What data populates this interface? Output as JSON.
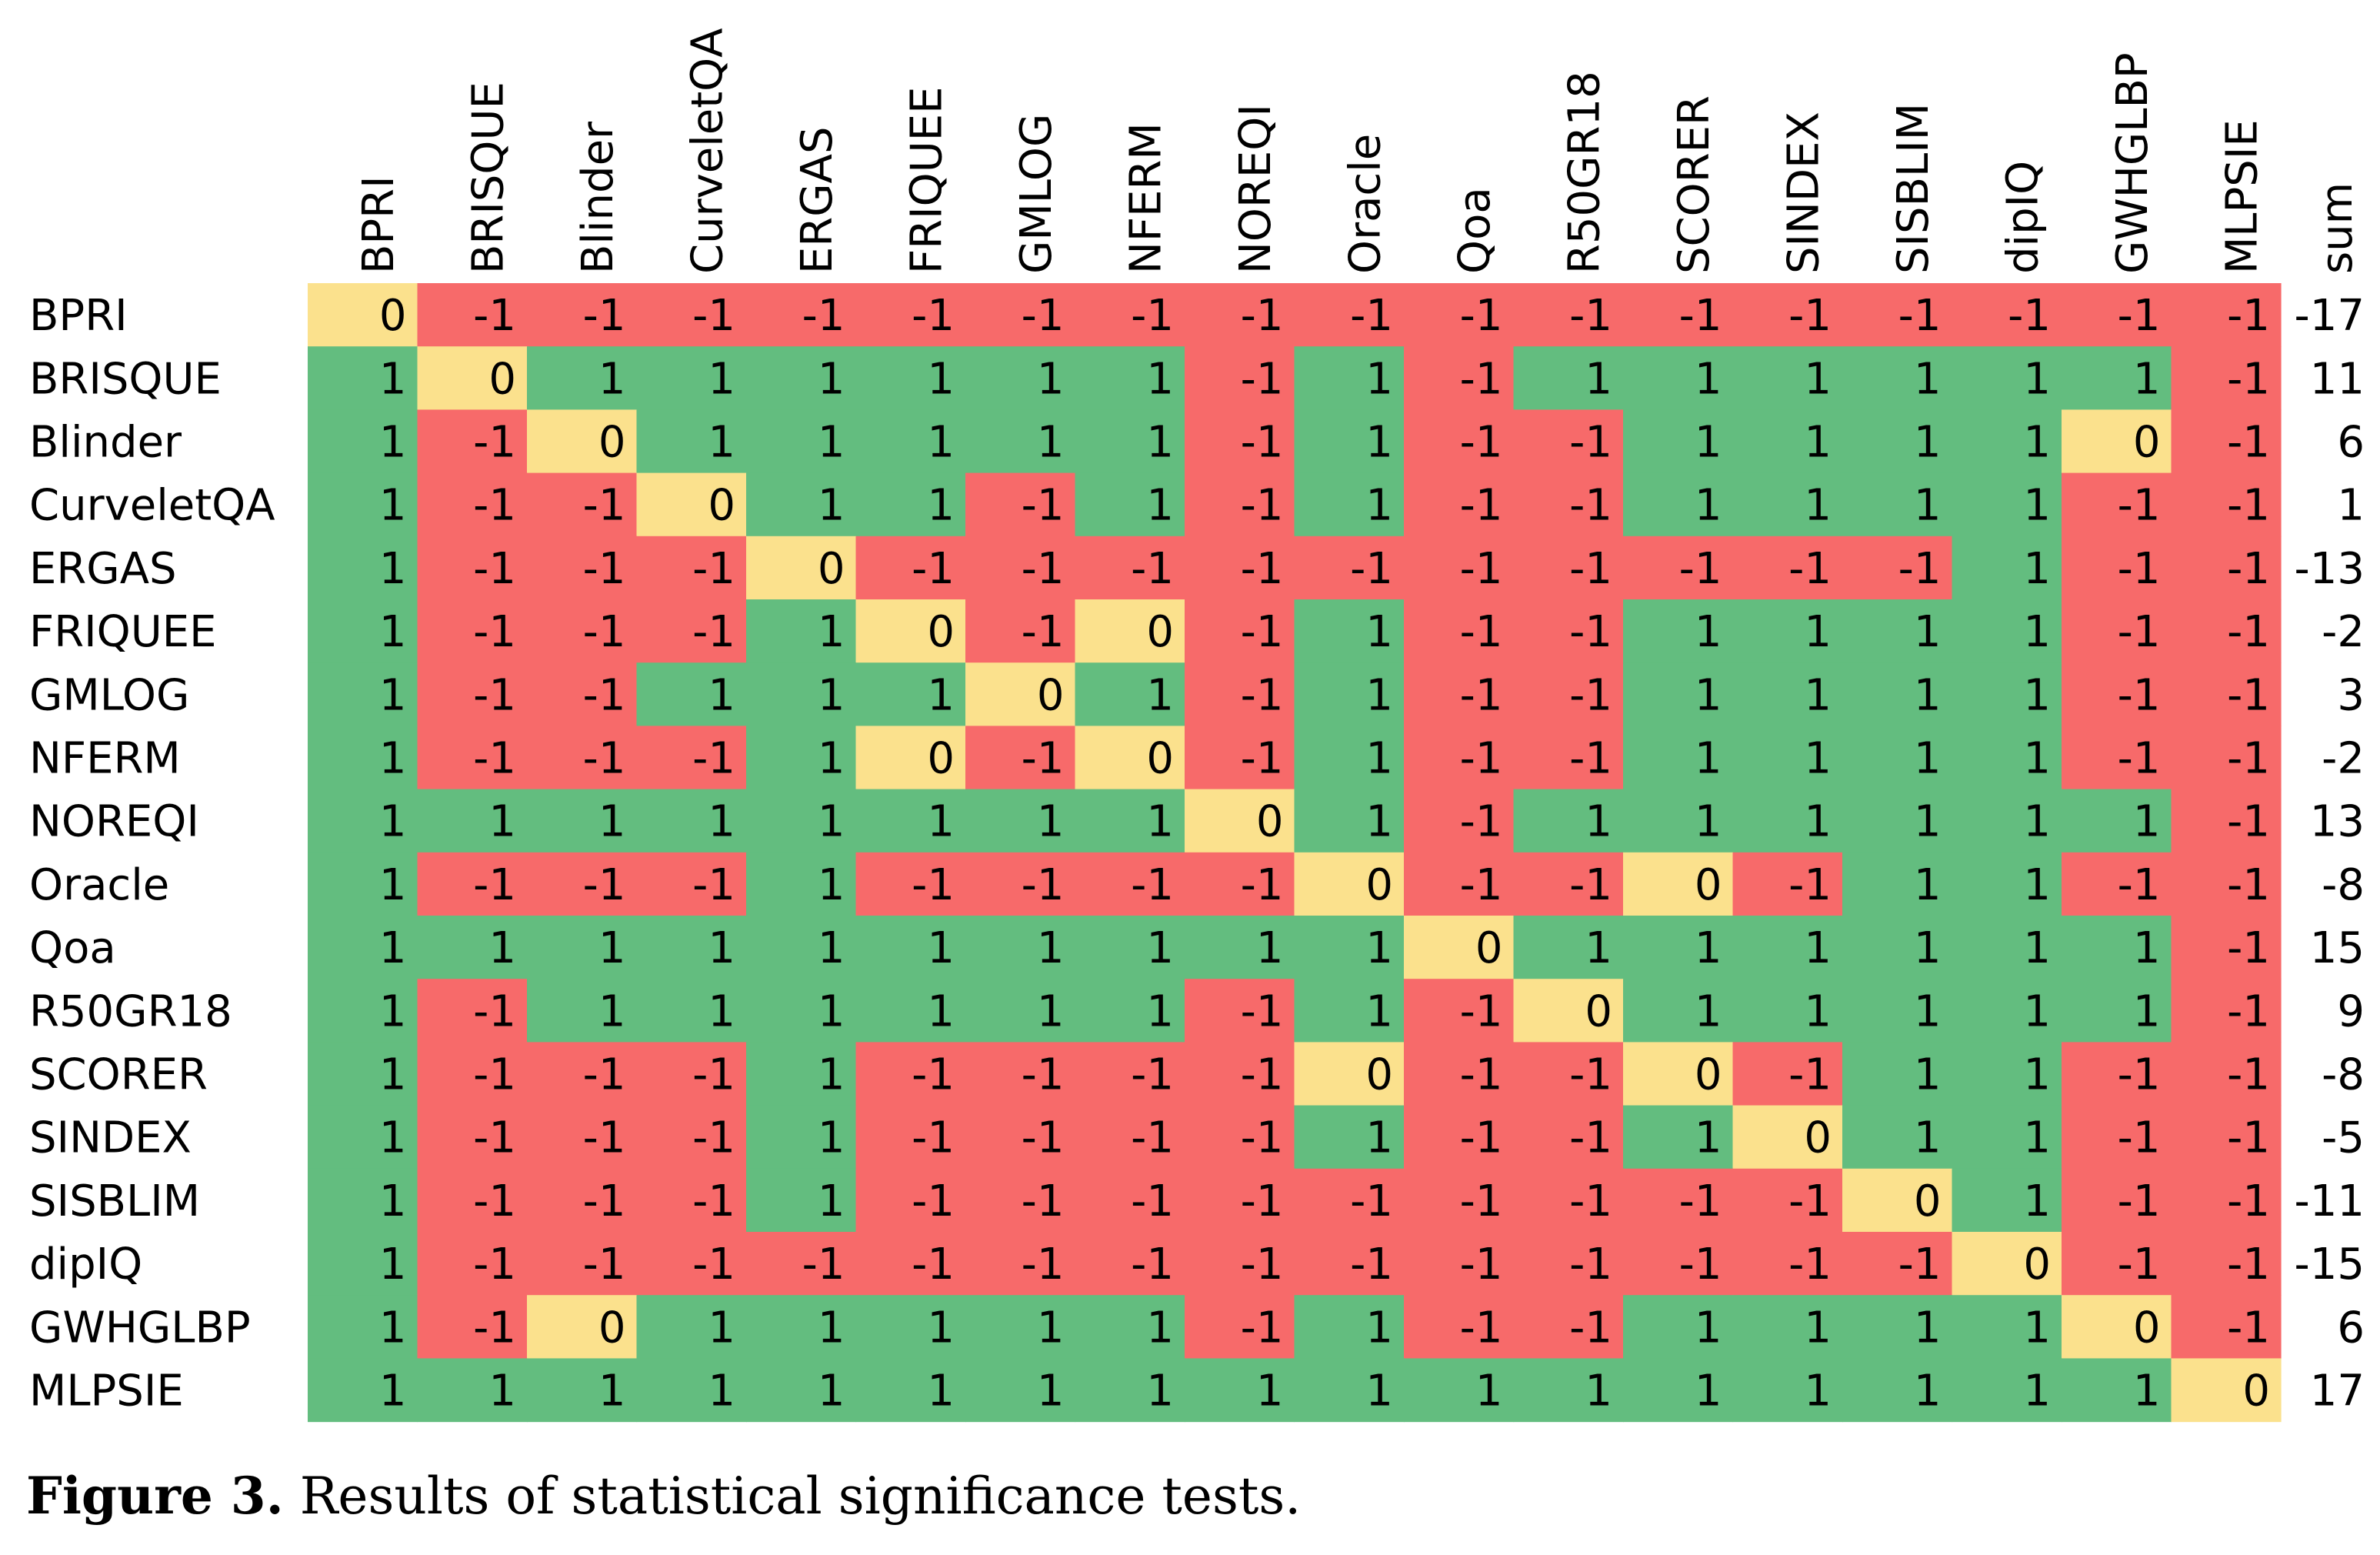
{
  "chart_data": {
    "type": "heatmap",
    "caption_label": "Figure 3.",
    "caption_text": "Results of statistical significance tests.",
    "columns": [
      "BPRI",
      "BRISQUE",
      "Blinder",
      "CurveletQA",
      "ERGAS",
      "FRIQUEE",
      "GMLOG",
      "NFERM",
      "NOREQI",
      "Oracle",
      "Qoa",
      "R50GR18",
      "SCORER",
      "SINDEX",
      "SISBLIM",
      "dipIQ",
      "GWHGLBP",
      "MLPSIE"
    ],
    "rows": [
      "BPRI",
      "BRISQUE",
      "Blinder",
      "CurveletQA",
      "ERGAS",
      "FRIQUEE",
      "GMLOG",
      "NFERM",
      "NOREQI",
      "Oracle",
      "Qoa",
      "R50GR18",
      "SCORER",
      "SINDEX",
      "SISBLIM",
      "dipIQ",
      "GWHGLBP",
      "MLPSIE"
    ],
    "sum_label": "sum",
    "values": [
      [
        0,
        -1,
        -1,
        -1,
        -1,
        -1,
        -1,
        -1,
        -1,
        -1,
        -1,
        -1,
        -1,
        -1,
        -1,
        -1,
        -1,
        -1
      ],
      [
        1,
        0,
        1,
        1,
        1,
        1,
        1,
        1,
        -1,
        1,
        -1,
        1,
        1,
        1,
        1,
        1,
        1,
        -1
      ],
      [
        1,
        -1,
        0,
        1,
        1,
        1,
        1,
        1,
        -1,
        1,
        -1,
        -1,
        1,
        1,
        1,
        1,
        0,
        -1
      ],
      [
        1,
        -1,
        -1,
        0,
        1,
        1,
        -1,
        1,
        -1,
        1,
        -1,
        -1,
        1,
        1,
        1,
        1,
        -1,
        -1
      ],
      [
        1,
        -1,
        -1,
        -1,
        0,
        -1,
        -1,
        -1,
        -1,
        -1,
        -1,
        -1,
        -1,
        -1,
        -1,
        1,
        -1,
        -1
      ],
      [
        1,
        -1,
        -1,
        -1,
        1,
        0,
        -1,
        0,
        -1,
        1,
        -1,
        -1,
        1,
        1,
        1,
        1,
        -1,
        -1
      ],
      [
        1,
        -1,
        -1,
        1,
        1,
        1,
        0,
        1,
        -1,
        1,
        -1,
        -1,
        1,
        1,
        1,
        1,
        -1,
        -1
      ],
      [
        1,
        -1,
        -1,
        -1,
        1,
        0,
        -1,
        0,
        -1,
        1,
        -1,
        -1,
        1,
        1,
        1,
        1,
        -1,
        -1
      ],
      [
        1,
        1,
        1,
        1,
        1,
        1,
        1,
        1,
        0,
        1,
        -1,
        1,
        1,
        1,
        1,
        1,
        1,
        -1
      ],
      [
        1,
        -1,
        -1,
        -1,
        1,
        -1,
        -1,
        -1,
        -1,
        0,
        -1,
        -1,
        0,
        -1,
        1,
        1,
        -1,
        -1
      ],
      [
        1,
        1,
        1,
        1,
        1,
        1,
        1,
        1,
        1,
        1,
        0,
        1,
        1,
        1,
        1,
        1,
        1,
        -1
      ],
      [
        1,
        -1,
        1,
        1,
        1,
        1,
        1,
        1,
        -1,
        1,
        -1,
        0,
        1,
        1,
        1,
        1,
        1,
        -1
      ],
      [
        1,
        -1,
        -1,
        -1,
        1,
        -1,
        -1,
        -1,
        -1,
        0,
        -1,
        -1,
        0,
        -1,
        1,
        1,
        -1,
        -1
      ],
      [
        1,
        -1,
        -1,
        -1,
        1,
        -1,
        -1,
        -1,
        -1,
        1,
        -1,
        -1,
        1,
        0,
        1,
        1,
        -1,
        -1
      ],
      [
        1,
        -1,
        -1,
        -1,
        1,
        -1,
        -1,
        -1,
        -1,
        -1,
        -1,
        -1,
        -1,
        -1,
        0,
        1,
        -1,
        -1
      ],
      [
        1,
        -1,
        -1,
        -1,
        -1,
        -1,
        -1,
        -1,
        -1,
        -1,
        -1,
        -1,
        -1,
        -1,
        -1,
        0,
        -1,
        -1
      ],
      [
        1,
        -1,
        0,
        1,
        1,
        1,
        1,
        1,
        -1,
        1,
        -1,
        -1,
        1,
        1,
        1,
        1,
        0,
        -1
      ],
      [
        1,
        1,
        1,
        1,
        1,
        1,
        1,
        1,
        1,
        1,
        1,
        1,
        1,
        1,
        1,
        1,
        1,
        0
      ]
    ],
    "sums": [
      -17,
      11,
      6,
      1,
      -13,
      -2,
      3,
      -2,
      13,
      -8,
      15,
      9,
      -8,
      -5,
      -11,
      -15,
      6,
      17
    ],
    "colors": {
      "positive": "#63bd7f",
      "negative": "#f76a6a",
      "zero": "#fbe18d"
    }
  }
}
